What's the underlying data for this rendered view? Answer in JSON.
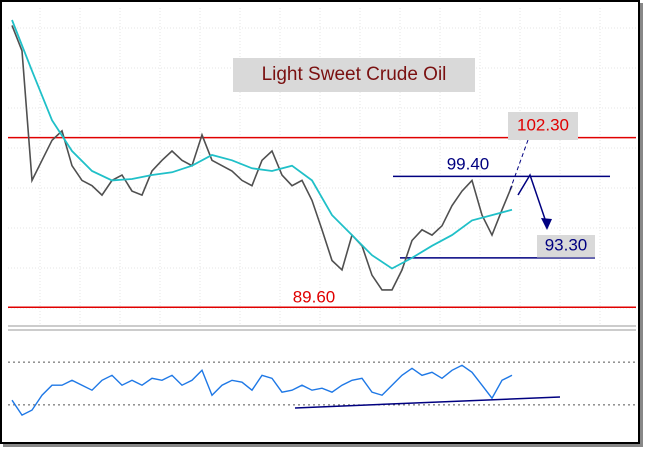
{
  "chart_data": {
    "type": "line",
    "title": "Light Sweet Crude Oil",
    "ylim": [
      88.2,
      112
    ],
    "grid": true,
    "series": [
      {
        "color": "#505050",
        "values": [
          110.7,
          108.8,
          99.1,
          100.6,
          102.1,
          102.8,
          100.2,
          99.1,
          98.7,
          98.0,
          99.1,
          99.5,
          98.3,
          98.0,
          99.8,
          100.6,
          101.3,
          100.6,
          100.2,
          102.5,
          100.6,
          100.2,
          99.8,
          99.1,
          98.7,
          100.6,
          101.3,
          99.5,
          98.7,
          99.1,
          97.6,
          95.4,
          93.1,
          92.4,
          95.0,
          94.2,
          92.0,
          90.9,
          90.9,
          92.4,
          94.6,
          95.4,
          95.0,
          95.7,
          97.2,
          98.3,
          99.1,
          96.5,
          95.0,
          96.9,
          98.7
        ]
      },
      {
        "color": "#20c0c8",
        "values": [
          111.1,
          null,
          107.3,
          null,
          103.6,
          null,
          101.3,
          null,
          99.8,
          null,
          99.1,
          null,
          99.2,
          null,
          99.5,
          null,
          99.7,
          null,
          100.2,
          null,
          101.0,
          null,
          100.6,
          null,
          100.0,
          null,
          99.8,
          null,
          100.2,
          null,
          99.1,
          null,
          96.5,
          null,
          95.0,
          null,
          93.5,
          null,
          92.5,
          null,
          93.3,
          null,
          94.2,
          null,
          95.0,
          null,
          96.1,
          null,
          96.5,
          null,
          96.9
        ]
      }
    ],
    "levels": [
      {
        "value": 102.3,
        "label": "102.30",
        "color": "#e00000"
      },
      {
        "value": 99.4,
        "label": "99.40",
        "color": "#000080"
      },
      {
        "value": 93.3,
        "label": "93.30",
        "color": "#000080"
      },
      {
        "value": 89.6,
        "label": "89.60",
        "color": "#e00000"
      }
    ],
    "oscillator": {
      "ylim": [
        0,
        100
      ],
      "levels": [
        70,
        30
      ],
      "color": "#1e78e6",
      "values": [
        34.4,
        20.5,
        25.1,
        39.1,
        48.4,
        48.4,
        53.0,
        48.4,
        43.7,
        53.0,
        57.7,
        48.4,
        53.0,
        48.4,
        54.9,
        53.0,
        57.7,
        48.4,
        53.0,
        62.3,
        39.1,
        48.4,
        53.0,
        51.2,
        43.7,
        57.7,
        54.9,
        41.9,
        43.7,
        48.4,
        43.7,
        45.6,
        41.9,
        48.4,
        53.0,
        54.9,
        41.9,
        39.1,
        48.4,
        57.7,
        64.2,
        57.7,
        60.5,
        54.9,
        62.3,
        67.0,
        60.5,
        48.4,
        36.3,
        53.0,
        57.7
      ]
    }
  }
}
